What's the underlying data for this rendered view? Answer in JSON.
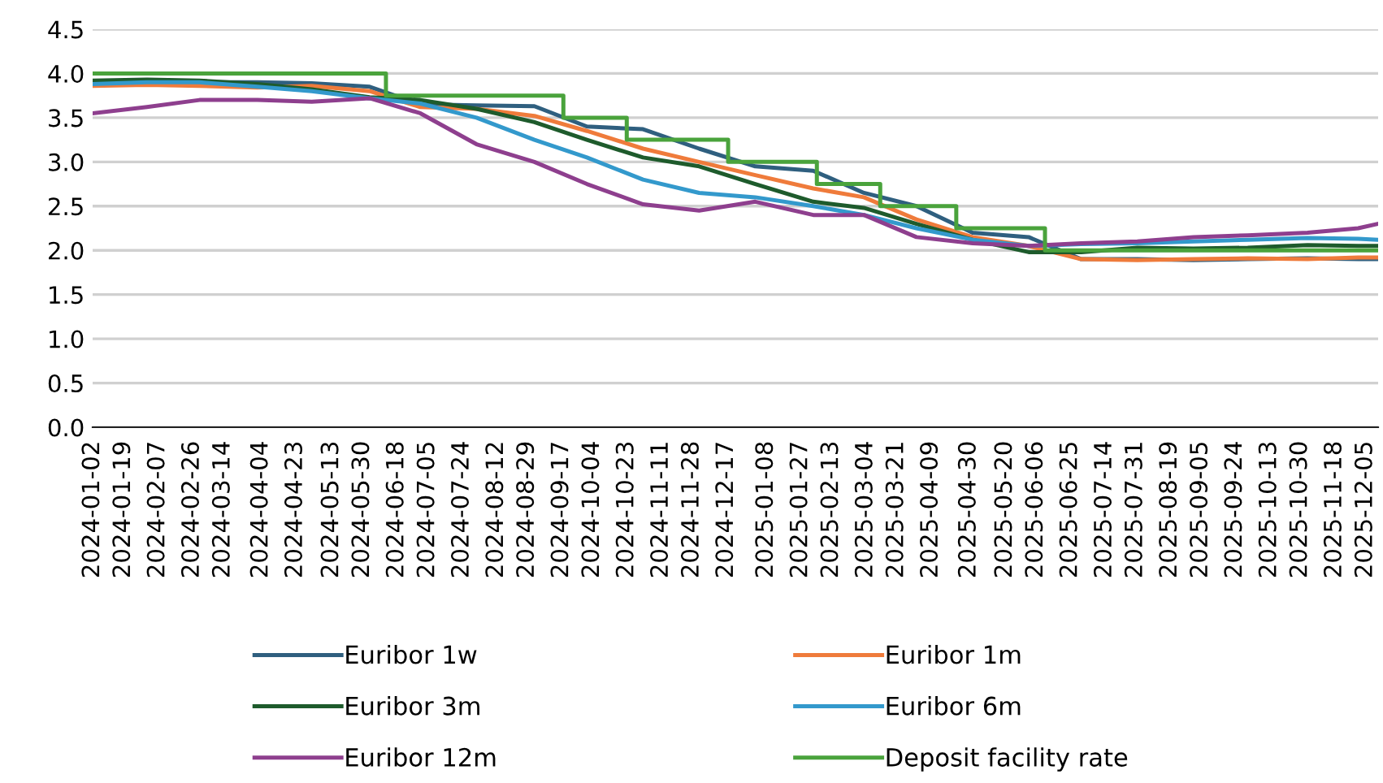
{
  "chart_data": {
    "type": "line",
    "x": [
      "2024-01-02",
      "2024-02-01",
      "2024-03-01",
      "2024-04-02",
      "2024-05-02",
      "2024-06-03",
      "2024-07-01",
      "2024-08-01",
      "2024-09-02",
      "2024-10-01",
      "2024-11-01",
      "2024-12-02",
      "2025-01-02",
      "2025-02-03",
      "2025-03-03",
      "2025-04-01",
      "2025-05-02",
      "2025-06-02",
      "2025-07-01",
      "2025-08-01",
      "2025-09-01",
      "2025-10-01",
      "2025-11-03",
      "2025-12-01",
      "2025-12-12"
    ],
    "series": [
      {
        "name": "Euribor 1w",
        "color": "#2f5f7f",
        "values": [
          3.9,
          3.91,
          3.9,
          3.9,
          3.89,
          3.85,
          3.65,
          3.64,
          3.63,
          3.4,
          3.37,
          3.15,
          2.95,
          2.9,
          2.65,
          2.5,
          2.2,
          2.15,
          1.9,
          1.9,
          1.89,
          1.9,
          1.91,
          1.9,
          1.9
        ]
      },
      {
        "name": "Euribor 1m",
        "color": "#ef7b3b",
        "values": [
          3.86,
          3.87,
          3.86,
          3.84,
          3.86,
          3.8,
          3.62,
          3.6,
          3.52,
          3.35,
          3.15,
          3.0,
          2.85,
          2.7,
          2.6,
          2.35,
          2.15,
          2.05,
          1.9,
          1.89,
          1.9,
          1.91,
          1.9,
          1.92,
          1.92
        ]
      },
      {
        "name": "Euribor 3m",
        "color": "#1e5b2c",
        "values": [
          3.92,
          3.93,
          3.92,
          3.88,
          3.82,
          3.73,
          3.7,
          3.6,
          3.45,
          3.25,
          3.05,
          2.95,
          2.75,
          2.55,
          2.48,
          2.3,
          2.12,
          1.98,
          1.98,
          2.03,
          2.02,
          2.03,
          2.06,
          2.05,
          2.05
        ]
      },
      {
        "name": "Euribor 6m",
        "color": "#3399cc",
        "values": [
          3.88,
          3.9,
          3.9,
          3.85,
          3.8,
          3.72,
          3.66,
          3.5,
          3.25,
          3.05,
          2.8,
          2.65,
          2.6,
          2.5,
          2.4,
          2.25,
          2.12,
          2.05,
          2.07,
          2.08,
          2.1,
          2.12,
          2.14,
          2.13,
          2.12
        ]
      },
      {
        "name": "Euribor 12m",
        "color": "#8e3f8e",
        "values": [
          3.55,
          3.62,
          3.7,
          3.7,
          3.68,
          3.72,
          3.55,
          3.2,
          3.0,
          2.75,
          2.52,
          2.45,
          2.55,
          2.4,
          2.4,
          2.15,
          2.08,
          2.05,
          2.08,
          2.1,
          2.15,
          2.17,
          2.2,
          2.25,
          2.3
        ]
      },
      {
        "name": "Deposit facility rate",
        "type": "step",
        "color": "#4aa33c",
        "x": [
          "2024-01-02",
          "2024-06-12",
          "2024-09-18",
          "2024-10-23",
          "2024-12-18",
          "2025-02-05",
          "2025-03-12",
          "2025-04-23",
          "2025-06-11",
          "2025-12-12"
        ],
        "values": [
          4.0,
          3.75,
          3.5,
          3.25,
          3.0,
          2.75,
          2.5,
          2.25,
          2.0,
          2.0
        ]
      }
    ],
    "xlim": [
      "2024-01-02",
      "2025-12-12"
    ],
    "xticks": [
      "2024-01-02",
      "2024-01-19",
      "2024-02-07",
      "2024-02-26",
      "2024-03-14",
      "2024-04-04",
      "2024-04-23",
      "2024-05-13",
      "2024-05-30",
      "2024-06-18",
      "2024-07-05",
      "2024-07-24",
      "2024-08-12",
      "2024-08-29",
      "2024-09-17",
      "2024-10-04",
      "2024-10-23",
      "2024-11-11",
      "2024-11-28",
      "2024-12-17",
      "2025-01-08",
      "2025-01-27",
      "2025-02-13",
      "2025-03-04",
      "2025-03-21",
      "2025-04-09",
      "2025-04-30",
      "2025-05-20",
      "2025-06-06",
      "2025-06-25",
      "2025-07-14",
      "2025-07-31",
      "2025-08-19",
      "2025-09-05",
      "2025-09-24",
      "2025-10-13",
      "2025-10-30",
      "2025-11-18",
      "2025-12-05"
    ],
    "ylim": [
      0,
      4.5
    ],
    "yticks": [
      {
        "value": 0,
        "label": "0.0"
      },
      {
        "value": 0.5,
        "label": "0.5"
      },
      {
        "value": 1,
        "label": "1.0"
      },
      {
        "value": 1.5,
        "label": "1.5"
      },
      {
        "value": 2,
        "label": "2.0"
      },
      {
        "value": 2.5,
        "label": "2.5"
      },
      {
        "value": 3,
        "label": "3.0"
      },
      {
        "value": 3.5,
        "label": "3.5"
      },
      {
        "value": 4,
        "label": "4.0"
      },
      {
        "value": 4.5,
        "label": "4.5"
      }
    ],
    "grid": "y",
    "legend": "bottom",
    "line_style": "solid",
    "marker": "none"
  }
}
